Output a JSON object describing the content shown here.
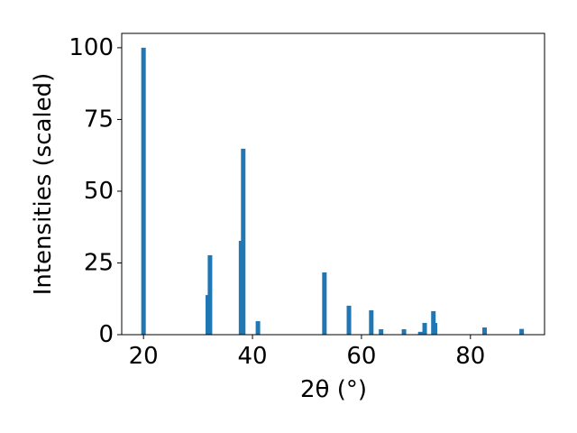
{
  "chart_data": {
    "type": "bar",
    "x": [
      20,
      31.8,
      32.2,
      37.9,
      38.3,
      41.0,
      53.2,
      57.7,
      61.8,
      63.6,
      67.8,
      70.8,
      71.6,
      73.2,
      73.5,
      82.6,
      89.4
    ],
    "values": [
      100,
      13.8,
      27.7,
      32.7,
      64.8,
      4.7,
      21.7,
      10.1,
      8.5,
      1.9,
      1.9,
      1.0,
      4.1,
      8.2,
      4.1,
      2.5,
      2.0
    ],
    "color": "#1f77b4",
    "xlabel": "2θ (°)",
    "ylabel": "Intensities (scaled)",
    "xlim": [
      16.0,
      93.6
    ],
    "xticks": [
      20,
      40,
      60,
      80
    ],
    "ylim": [
      0,
      105
    ],
    "yticks": [
      0,
      25,
      50,
      75,
      100
    ],
    "grid": false
  }
}
